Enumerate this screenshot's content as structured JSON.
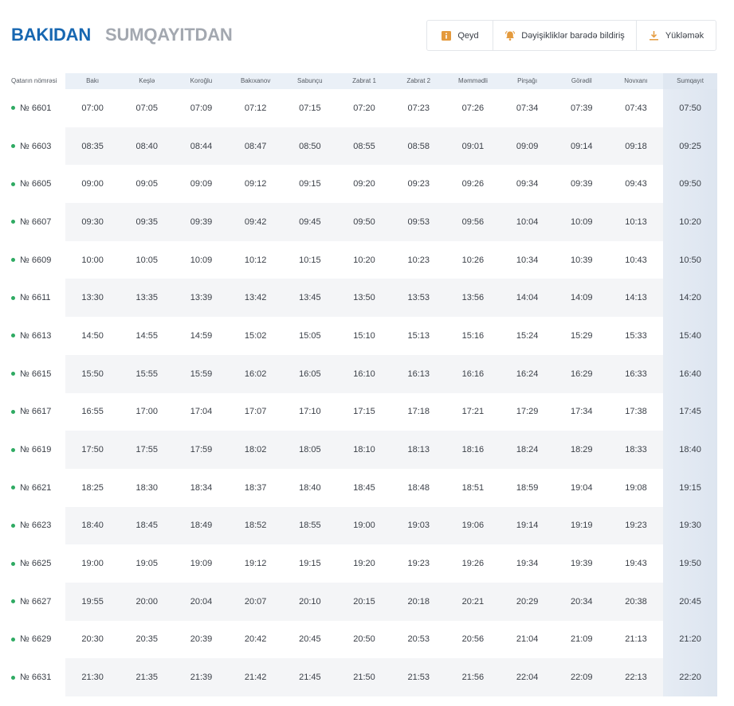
{
  "tabs": [
    {
      "label": "BAKIDAN",
      "active": true
    },
    {
      "label": "SUMQAYITDAN",
      "active": false
    }
  ],
  "toolbar": {
    "note_label": "Qeyd",
    "notify_label": "Dəyişikliklər barədə bildiriş",
    "download_label": "Yükləmək"
  },
  "colors": {
    "accent": "#1767b1",
    "status_dot": "#2eaa62",
    "icon": "#e49a3d"
  },
  "table": {
    "headers": [
      "Qatarın nömrəsi",
      "Bakı",
      "Keşlə",
      "Koroğlu",
      "Bakıxanov",
      "Sabunçu",
      "Zabrat 1",
      "Zabrat 2",
      "Məmmədli",
      "Pirşağı",
      "Görədil",
      "Novxanı",
      "Sumqayıt"
    ],
    "rows": [
      {
        "train": "№ 6601",
        "times": [
          "07:00",
          "07:05",
          "07:09",
          "07:12",
          "07:15",
          "07:20",
          "07:23",
          "07:26",
          "07:34",
          "07:39",
          "07:43",
          "07:50"
        ]
      },
      {
        "train": "№ 6603",
        "times": [
          "08:35",
          "08:40",
          "08:44",
          "08:47",
          "08:50",
          "08:55",
          "08:58",
          "09:01",
          "09:09",
          "09:14",
          "09:18",
          "09:25"
        ]
      },
      {
        "train": "№ 6605",
        "times": [
          "09:00",
          "09:05",
          "09:09",
          "09:12",
          "09:15",
          "09:20",
          "09:23",
          "09:26",
          "09:34",
          "09:39",
          "09:43",
          "09:50"
        ]
      },
      {
        "train": "№ 6607",
        "times": [
          "09:30",
          "09:35",
          "09:39",
          "09:42",
          "09:45",
          "09:50",
          "09:53",
          "09:56",
          "10:04",
          "10:09",
          "10:13",
          "10:20"
        ]
      },
      {
        "train": "№ 6609",
        "times": [
          "10:00",
          "10:05",
          "10:09",
          "10:12",
          "10:15",
          "10:20",
          "10:23",
          "10:26",
          "10:34",
          "10:39",
          "10:43",
          "10:50"
        ]
      },
      {
        "train": "№ 6611",
        "times": [
          "13:30",
          "13:35",
          "13:39",
          "13:42",
          "13:45",
          "13:50",
          "13:53",
          "13:56",
          "14:04",
          "14:09",
          "14:13",
          "14:20"
        ]
      },
      {
        "train": "№ 6613",
        "times": [
          "14:50",
          "14:55",
          "14:59",
          "15:02",
          "15:05",
          "15:10",
          "15:13",
          "15:16",
          "15:24",
          "15:29",
          "15:33",
          "15:40"
        ]
      },
      {
        "train": "№ 6615",
        "times": [
          "15:50",
          "15:55",
          "15:59",
          "16:02",
          "16:05",
          "16:10",
          "16:13",
          "16:16",
          "16:24",
          "16:29",
          "16:33",
          "16:40"
        ]
      },
      {
        "train": "№ 6617",
        "times": [
          "16:55",
          "17:00",
          "17:04",
          "17:07",
          "17:10",
          "17:15",
          "17:18",
          "17:21",
          "17:29",
          "17:34",
          "17:38",
          "17:45"
        ]
      },
      {
        "train": "№ 6619",
        "times": [
          "17:50",
          "17:55",
          "17:59",
          "18:02",
          "18:05",
          "18:10",
          "18:13",
          "18:16",
          "18:24",
          "18:29",
          "18:33",
          "18:40"
        ]
      },
      {
        "train": "№ 6621",
        "times": [
          "18:25",
          "18:30",
          "18:34",
          "18:37",
          "18:40",
          "18:45",
          "18:48",
          "18:51",
          "18:59",
          "19:04",
          "19:08",
          "19:15"
        ]
      },
      {
        "train": "№ 6623",
        "times": [
          "18:40",
          "18:45",
          "18:49",
          "18:52",
          "18:55",
          "19:00",
          "19:03",
          "19:06",
          "19:14",
          "19:19",
          "19:23",
          "19:30"
        ]
      },
      {
        "train": "№ 6625",
        "times": [
          "19:00",
          "19:05",
          "19:09",
          "19:12",
          "19:15",
          "19:20",
          "19:23",
          "19:26",
          "19:34",
          "19:39",
          "19:43",
          "19:50"
        ]
      },
      {
        "train": "№ 6627",
        "times": [
          "19:55",
          "20:00",
          "20:04",
          "20:07",
          "20:10",
          "20:15",
          "20:18",
          "20:21",
          "20:29",
          "20:34",
          "20:38",
          "20:45"
        ]
      },
      {
        "train": "№ 6629",
        "times": [
          "20:30",
          "20:35",
          "20:39",
          "20:42",
          "20:45",
          "20:50",
          "20:53",
          "20:56",
          "21:04",
          "21:09",
          "21:13",
          "21:20"
        ]
      },
      {
        "train": "№ 6631",
        "times": [
          "21:30",
          "21:35",
          "21:39",
          "21:42",
          "21:45",
          "21:50",
          "21:53",
          "21:56",
          "22:04",
          "22:09",
          "22:13",
          "22:20"
        ]
      }
    ]
  }
}
